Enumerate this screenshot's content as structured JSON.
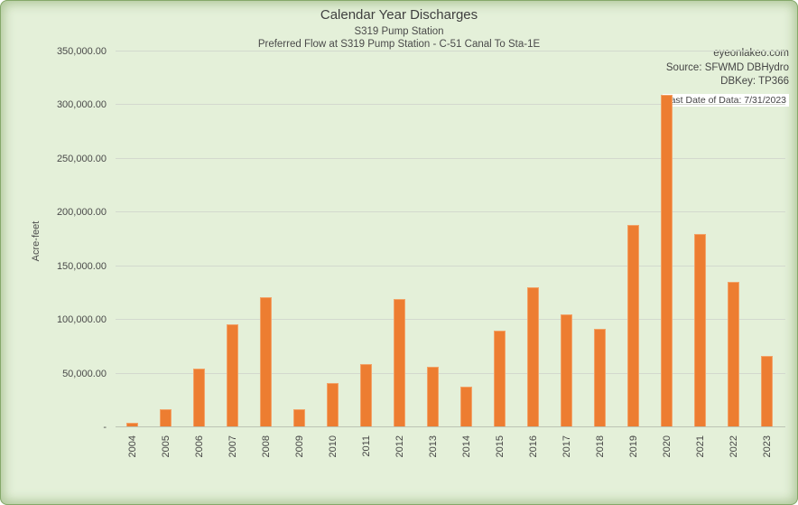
{
  "header": {
    "title": "Calendar Year Discharges",
    "subtitle1": "S319 Pump Station",
    "subtitle2": "Preferred Flow at S319 Pump Station - C-51 Canal To Sta-1E"
  },
  "notes": {
    "website": "eyeonlakeo.com",
    "source": "Source: SFWMD DBHydro",
    "dbkey": "DBKey: TP366",
    "last_date": "Last Date of Data: 7/31/2023"
  },
  "colors": {
    "background": "#e4f0d9",
    "border_green": "#85a96a",
    "bar": "#ed7d31",
    "bar_edge": "#f2a368",
    "gridline": "#d3d9ce",
    "axis_line": "#bcc4b4",
    "text": "#454545",
    "note_background": "#ffffff"
  },
  "chart_data": {
    "type": "bar",
    "title": "Calendar Year Discharges",
    "subtitle": "S319 Pump Station",
    "annotation": "Preferred Flow at S319 Pump Station - C-51 Canal To Sta-1E",
    "xlabel": "",
    "ylabel": "Acre-feet",
    "ylim": [
      0,
      350000
    ],
    "ytick_interval": 50000,
    "ytick_labels": [
      "-",
      "50,000.00",
      "100,000.00",
      "150,000.00",
      "200,000.00",
      "250,000.00",
      "300,000.00",
      "350,000.00"
    ],
    "grid": true,
    "legend": false,
    "categories": [
      "2004",
      "2005",
      "2006",
      "2007",
      "2008",
      "2009",
      "2010",
      "2011",
      "2012",
      "2013",
      "2014",
      "2015",
      "2016",
      "2017",
      "2018",
      "2019",
      "2020",
      "2021",
      "2022",
      "2023"
    ],
    "values": [
      3000,
      16000,
      54000,
      95500,
      120500,
      16000,
      40500,
      58000,
      119000,
      55500,
      37000,
      89000,
      130000,
      104000,
      91000,
      188000,
      309000,
      179000,
      135000,
      66000
    ]
  }
}
